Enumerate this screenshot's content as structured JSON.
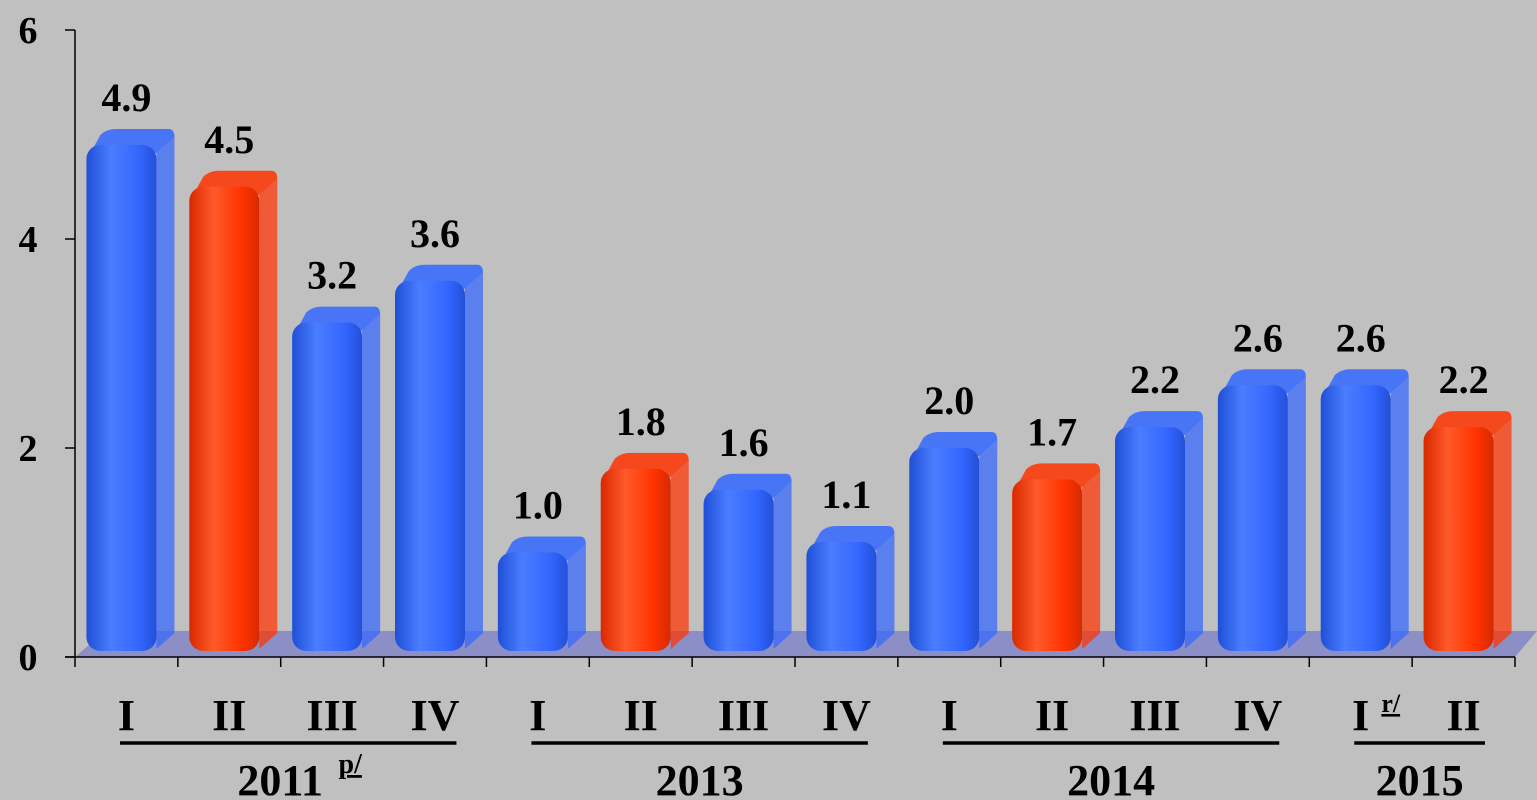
{
  "chart_data": {
    "type": "bar",
    "title": "",
    "xlabel": "",
    "ylabel": "",
    "ylim": [
      0,
      6
    ],
    "y_ticks": [
      "0",
      "2",
      "4",
      "6"
    ],
    "grid": false,
    "groups": [
      {
        "label": "2011",
        "superscript": "p/",
        "categories": [
          "I",
          "II",
          "III",
          "IV"
        ],
        "category_superscripts": [
          "",
          "",
          "",
          ""
        ]
      },
      {
        "label": "2013",
        "superscript": "",
        "categories": [
          "I",
          "II",
          "III",
          "IV"
        ],
        "category_superscripts": [
          "",
          "",
          "",
          ""
        ]
      },
      {
        "label": "2014",
        "superscript": "",
        "categories": [
          "I",
          "II",
          "III",
          "IV"
        ],
        "category_superscripts": [
          "",
          "",
          "",
          ""
        ]
      },
      {
        "label": "2015",
        "superscript": "",
        "categories": [
          "I",
          "II"
        ],
        "category_superscripts": [
          "r/",
          ""
        ]
      }
    ],
    "values": [
      4.9,
      4.5,
      3.2,
      3.6,
      1.0,
      1.8,
      1.6,
      1.1,
      2.0,
      1.7,
      2.2,
      2.6,
      2.6,
      2.2
    ],
    "data_labels": [
      "4.9",
      "4.5",
      "3.2",
      "3.6",
      "1.0",
      "1.8",
      "1.6",
      "1.1",
      "2.0",
      "1.7",
      "2.2",
      "2.6",
      "2.6",
      "2.2"
    ],
    "highlighted": [
      false,
      true,
      false,
      false,
      false,
      true,
      false,
      false,
      false,
      true,
      false,
      false,
      false,
      true
    ],
    "colors": {
      "default_bar": "#3366ff",
      "highlight_bar": "#ff3300",
      "floor": "#8c8fc6",
      "background": "#c0c0c0"
    }
  }
}
